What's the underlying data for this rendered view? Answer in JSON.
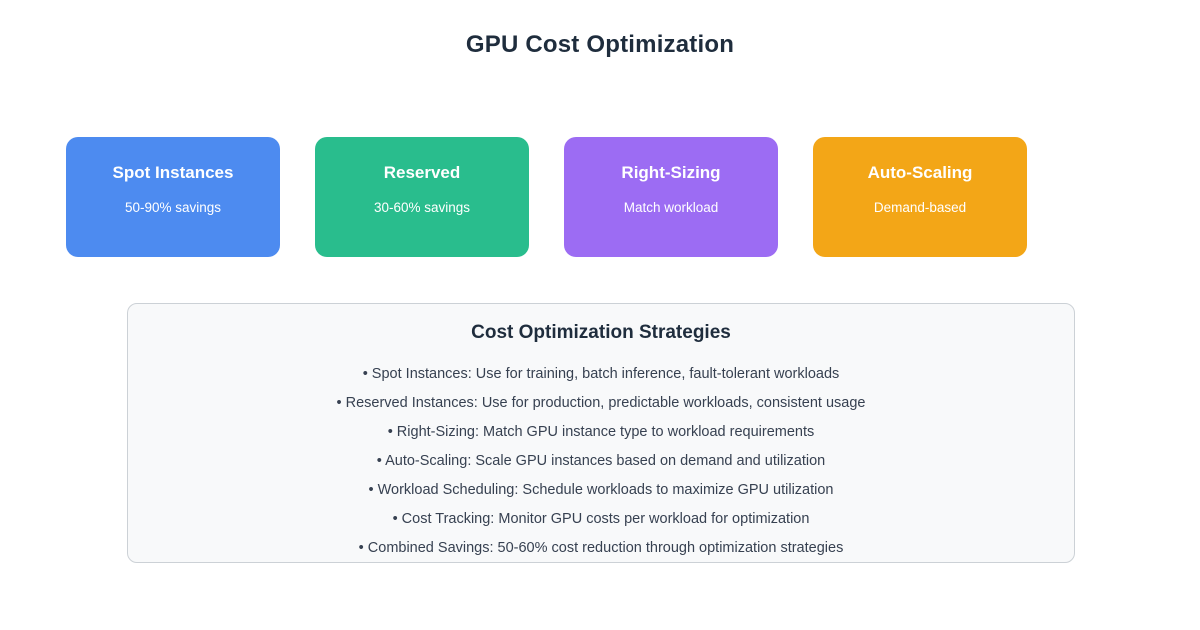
{
  "title": "GPU Cost Optimization",
  "cards": [
    {
      "title": "Spot Instances",
      "subtitle": "50-90% savings",
      "color": "#4d8bf0"
    },
    {
      "title": "Reserved",
      "subtitle": "30-60% savings",
      "color": "#29bd8d"
    },
    {
      "title": "Right-Sizing",
      "subtitle": "Match workload",
      "color": "#9c6cf3"
    },
    {
      "title": "Auto-Scaling",
      "subtitle": "Demand-based",
      "color": "#f3a617"
    }
  ],
  "panel": {
    "title": "Cost Optimization Strategies",
    "items": [
      "• Spot Instances: Use for training, batch inference, fault-tolerant workloads",
      "• Reserved Instances: Use for production, predictable workloads, consistent usage",
      "• Right-Sizing: Match GPU instance type to workload requirements",
      "• Auto-Scaling: Scale GPU instances based on demand and utilization",
      "• Workload Scheduling: Schedule workloads to maximize GPU utilization",
      "• Cost Tracking: Monitor GPU costs per workload for optimization",
      "• Combined Savings: 50-60% cost reduction through optimization strategies"
    ]
  }
}
